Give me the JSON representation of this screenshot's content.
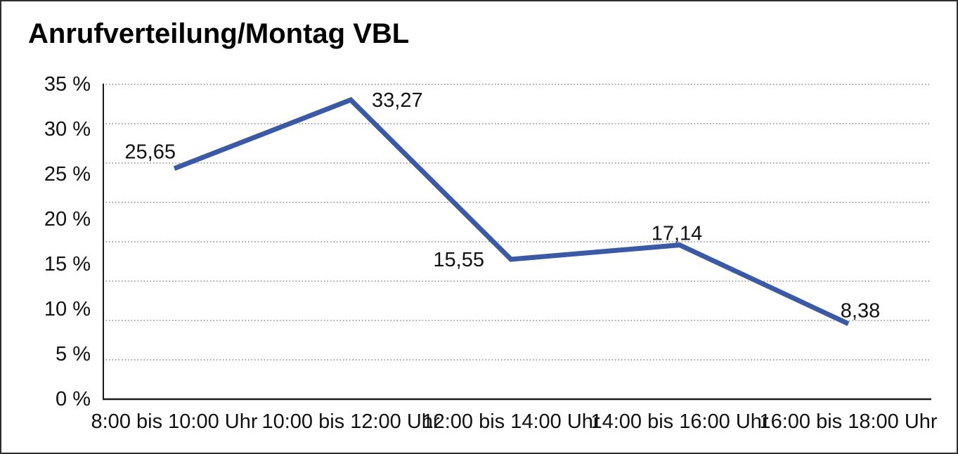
{
  "title": "Anrufverteilung/Montag VBL",
  "chart_data": {
    "type": "line",
    "title": "Anrufverteilung/Montag VBL",
    "categories": [
      "8:00 bis 10:00 Uhr",
      "10:00 bis 12:00 Uhr",
      "12:00 bis 14:00 Uhr",
      "14:00 bis 16:00 Uhr",
      "16:00 bis 18:00 Uhr"
    ],
    "values": [
      25.65,
      33.27,
      15.55,
      17.14,
      8.38
    ],
    "value_labels": [
      "25,65",
      "33,27",
      "15,55",
      "17,14",
      "8,38"
    ],
    "y_tick_labels": [
      "35 %",
      "30 %",
      "25 %",
      "20 %",
      "15 %",
      "10 %",
      "5 %",
      "0 %"
    ],
    "ylim": [
      0,
      35
    ],
    "xlabel": "",
    "ylabel": "",
    "legend": "none",
    "grid": "horizontal-dotted",
    "line_color": "#3B5AA5",
    "axis_color": "#1a1a1a",
    "text_color": "#111111"
  }
}
